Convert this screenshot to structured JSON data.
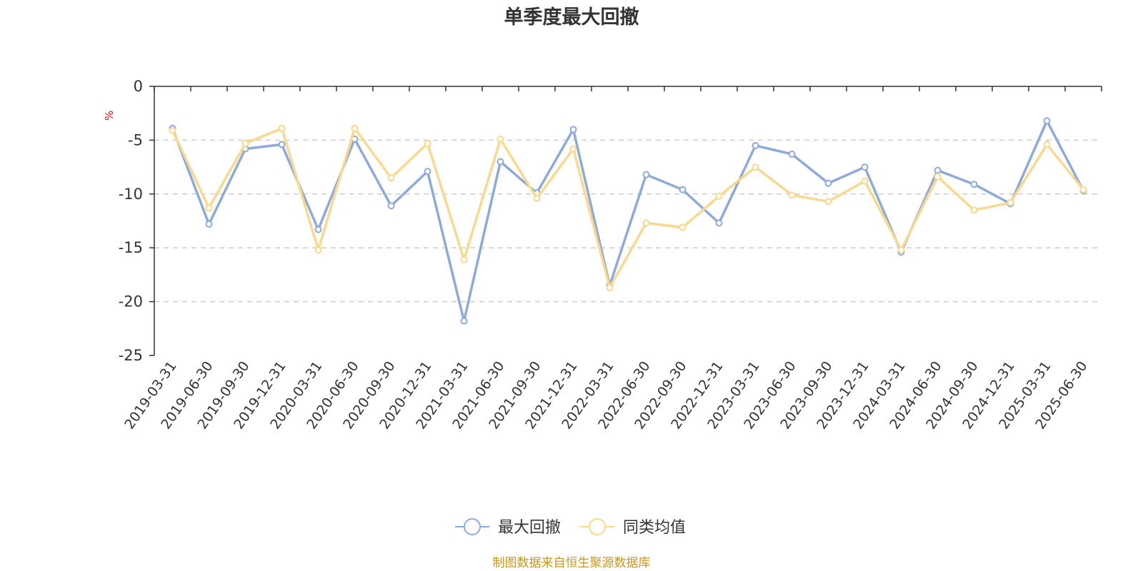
{
  "chart_data": {
    "type": "line",
    "title": "单季度最大回撤",
    "ylabel": "%",
    "ylim": [
      -25,
      0
    ],
    "yticks": [
      0,
      -5,
      -10,
      -15,
      -20,
      -25
    ],
    "grid": true,
    "legend_position": "bottom",
    "categories": [
      "2019-03-31",
      "2019-06-30",
      "2019-09-30",
      "2019-12-31",
      "2020-03-31",
      "2020-06-30",
      "2020-09-30",
      "2020-12-31",
      "2021-03-31",
      "2021-06-30",
      "2021-09-30",
      "2021-12-31",
      "2022-03-31",
      "2022-06-30",
      "2022-09-30",
      "2022-12-31",
      "2023-03-31",
      "2023-06-30",
      "2023-09-30",
      "2023-12-31",
      "2024-03-31",
      "2024-06-30",
      "2024-09-30",
      "2024-12-31",
      "2025-03-31",
      "2025-06-30"
    ],
    "series": [
      {
        "name": "最大回撤",
        "color": "#8eaadb",
        "values": [
          -3.9,
          -12.8,
          -5.8,
          -5.4,
          -13.3,
          -4.9,
          -11.1,
          -7.9,
          -21.8,
          -7.0,
          -9.9,
          -4.0,
          -18.5,
          -8.2,
          -9.6,
          -12.7,
          -5.5,
          -6.3,
          -9.0,
          -7.5,
          -15.4,
          -7.8,
          -9.1,
          -10.9,
          -3.2,
          -9.7
        ]
      },
      {
        "name": "同类均值",
        "color": "#fbd88e",
        "values": [
          -4.1,
          -11.3,
          -5.3,
          -3.9,
          -15.2,
          -3.9,
          -8.5,
          -5.3,
          -16.1,
          -4.9,
          -10.4,
          -5.8,
          -18.7,
          -12.7,
          -13.1,
          -10.2,
          -7.5,
          -10.1,
          -10.7,
          -8.8,
          -15.2,
          -8.4,
          -11.5,
          -10.8,
          -5.4,
          -9.6
        ]
      }
    ]
  },
  "source_text": "制图数据来自恒生聚源数据库",
  "colors": {
    "axis": "#333333",
    "grid": "#cccccc",
    "unit": "#ff0000",
    "source": "#c8961e"
  }
}
